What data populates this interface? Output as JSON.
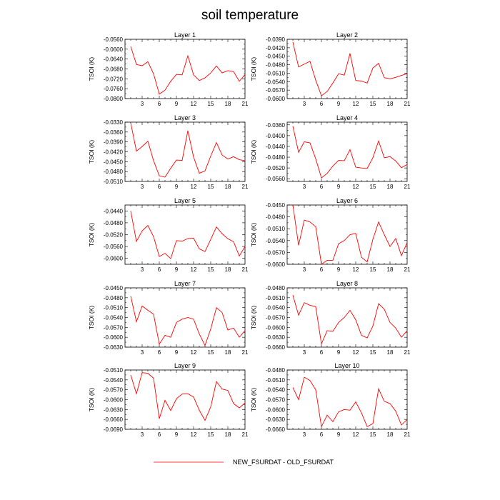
{
  "figure": {
    "title": "soil temperature",
    "legend": {
      "label": "NEW_FSURDAT - OLD_FSURDAT",
      "color": "#ff0000",
      "placement": "bottom-center"
    }
  },
  "chart_data": [
    {
      "type": "line",
      "title": "Layer 1",
      "ylabel": "TSOI  (K)",
      "xlim": [
        0,
        21
      ],
      "xticks": [
        3,
        6,
        9,
        12,
        15,
        18,
        21
      ],
      "ylim": [
        -0.08,
        -0.056
      ],
      "yticks": [
        "-0.0560",
        "-0.0600",
        "-0.0640",
        "-0.0680",
        "-0.0720",
        "-0.0760",
        "-0.0800"
      ],
      "x": [
        1,
        2,
        3,
        4,
        5,
        6,
        7,
        8,
        9,
        10,
        11,
        12,
        13,
        14,
        15,
        16,
        17,
        18,
        19,
        20,
        21
      ],
      "series": [
        {
          "color": "#ff0000",
          "values": [
            -0.0589,
            -0.0662,
            -0.0667,
            -0.0651,
            -0.07,
            -0.0782,
            -0.0766,
            -0.073,
            -0.0702,
            -0.0704,
            -0.0627,
            -0.0704,
            -0.0727,
            -0.0716,
            -0.0696,
            -0.0668,
            -0.0696,
            -0.0687,
            -0.0691,
            -0.073,
            -0.0703
          ]
        }
      ]
    },
    {
      "type": "line",
      "title": "Layer 2",
      "ylabel": "TSOI  (K)",
      "xlim": [
        0,
        21
      ],
      "xticks": [
        3,
        6,
        9,
        12,
        15,
        18,
        21
      ],
      "ylim": [
        -0.06,
        -0.039
      ],
      "yticks": [
        "-0.0390",
        "-0.0420",
        "-0.0450",
        "-0.0480",
        "-0.0510",
        "-0.0540",
        "-0.0570",
        "-0.0600"
      ],
      "x": [
        1,
        2,
        3,
        4,
        5,
        6,
        7,
        8,
        9,
        10,
        11,
        12,
        13,
        14,
        15,
        16,
        17,
        18,
        19,
        20,
        21
      ],
      "series": [
        {
          "color": "#ff0000",
          "values": [
            -0.04,
            -0.0488,
            -0.0478,
            -0.0468,
            -0.0535,
            -0.059,
            -0.0575,
            -0.0545,
            -0.0512,
            -0.0517,
            -0.044,
            -0.0536,
            -0.0538,
            -0.0545,
            -0.0492,
            -0.0475,
            -0.0526,
            -0.053,
            -0.0525,
            -0.0518,
            -0.0512
          ]
        }
      ]
    },
    {
      "type": "line",
      "title": "Layer 3",
      "ylabel": "TSOI  (K)",
      "xlim": [
        0,
        21
      ],
      "xticks": [
        3,
        6,
        9,
        12,
        15,
        18,
        21
      ],
      "ylim": [
        -0.051,
        -0.033
      ],
      "yticks": [
        "-0.0330",
        "-0.0360",
        "-0.0390",
        "-0.0420",
        "-0.0450",
        "-0.0480",
        "-0.0510"
      ],
      "x": [
        1,
        2,
        3,
        4,
        5,
        6,
        7,
        8,
        9,
        10,
        11,
        12,
        13,
        14,
        15,
        16,
        17,
        18,
        19,
        20,
        21
      ],
      "series": [
        {
          "color": "#ff0000",
          "values": [
            -0.0332,
            -0.0418,
            -0.0404,
            -0.0388,
            -0.0447,
            -0.0493,
            -0.0497,
            -0.047,
            -0.0445,
            -0.0446,
            -0.0356,
            -0.0436,
            -0.0485,
            -0.0478,
            -0.0433,
            -0.0392,
            -0.043,
            -0.0442,
            -0.0435,
            -0.0444,
            -0.0447
          ]
        }
      ]
    },
    {
      "type": "line",
      "title": "Layer 4",
      "ylabel": "TSOI  (K)",
      "xlim": [
        0,
        21
      ],
      "xticks": [
        3,
        6,
        9,
        12,
        15,
        18,
        21
      ],
      "ylim": [
        -0.057,
        -0.035
      ],
      "yticks": [
        "-0.0360",
        "-0.0400",
        "-0.0440",
        "-0.0480",
        "-0.0520",
        "-0.0560"
      ],
      "x": [
        1,
        2,
        3,
        4,
        5,
        6,
        7,
        8,
        9,
        10,
        11,
        12,
        13,
        14,
        15,
        16,
        17,
        18,
        19,
        20,
        21
      ],
      "series": [
        {
          "color": "#ff0000",
          "values": [
            -0.0365,
            -0.0462,
            -0.0423,
            -0.0427,
            -0.0486,
            -0.0557,
            -0.054,
            -0.0513,
            -0.0492,
            -0.0493,
            -0.0452,
            -0.0517,
            -0.052,
            -0.0522,
            -0.0482,
            -0.042,
            -0.0482,
            -0.0478,
            -0.0494,
            -0.0519,
            -0.0507
          ]
        }
      ]
    },
    {
      "type": "line",
      "title": "Layer 5",
      "ylabel": "TSOI  (K)",
      "xlim": [
        0,
        21
      ],
      "xticks": [
        3,
        6,
        9,
        12,
        15,
        18,
        21
      ],
      "ylim": [
        -0.062,
        -0.042
      ],
      "yticks": [
        "-0.0440",
        "-0.0480",
        "-0.0520",
        "-0.0560",
        "-0.0600"
      ],
      "x": [
        1,
        2,
        3,
        4,
        5,
        6,
        7,
        8,
        9,
        10,
        11,
        12,
        13,
        14,
        15,
        16,
        17,
        18,
        19,
        20,
        21
      ],
      "series": [
        {
          "color": "#ff0000",
          "values": [
            -0.044,
            -0.0543,
            -0.0507,
            -0.0489,
            -0.0527,
            -0.0594,
            -0.0583,
            -0.0601,
            -0.054,
            -0.0542,
            -0.0533,
            -0.0532,
            -0.0568,
            -0.0577,
            -0.0536,
            -0.0494,
            -0.0517,
            -0.0534,
            -0.0544,
            -0.0592,
            -0.056
          ]
        }
      ]
    },
    {
      "type": "line",
      "title": "Layer 6",
      "ylabel": "TSOI  (K)",
      "xlim": [
        0,
        21
      ],
      "xticks": [
        3,
        6,
        9,
        12,
        15,
        18,
        21
      ],
      "ylim": [
        -0.06,
        -0.045
      ],
      "yticks": [
        "-0.0450",
        "-0.0480",
        "-0.0510",
        "-0.0540",
        "-0.0570",
        "-0.0600"
      ],
      "x": [
        1,
        2,
        3,
        4,
        5,
        6,
        7,
        8,
        9,
        10,
        11,
        12,
        13,
        14,
        15,
        16,
        17,
        18,
        19,
        20,
        21
      ],
      "series": [
        {
          "color": "#ff0000",
          "values": [
            -0.0449,
            -0.0552,
            -0.0488,
            -0.0493,
            -0.0505,
            -0.06,
            -0.059,
            -0.059,
            -0.0548,
            -0.054,
            -0.0525,
            -0.0522,
            -0.0582,
            -0.0594,
            -0.0537,
            -0.0493,
            -0.0525,
            -0.0555,
            -0.0535,
            -0.0578,
            -0.0545
          ]
        }
      ]
    },
    {
      "type": "line",
      "title": "Layer 7",
      "ylabel": "TSOI  (K)",
      "xlim": [
        0,
        21
      ],
      "xticks": [
        3,
        6,
        9,
        12,
        15,
        18,
        21
      ],
      "ylim": [
        -0.063,
        -0.045
      ],
      "yticks": [
        "-0.0450",
        "-0.0480",
        "-0.0510",
        "-0.0540",
        "-0.0570",
        "-0.0600",
        "-0.0630"
      ],
      "x": [
        1,
        2,
        3,
        4,
        5,
        6,
        7,
        8,
        9,
        10,
        11,
        12,
        13,
        14,
        15,
        16,
        17,
        18,
        19,
        20,
        21
      ],
      "series": [
        {
          "color": "#ff0000",
          "values": [
            -0.0475,
            -0.0553,
            -0.0505,
            -0.0518,
            -0.053,
            -0.0621,
            -0.0594,
            -0.06,
            -0.0555,
            -0.0545,
            -0.054,
            -0.0545,
            -0.059,
            -0.0625,
            -0.0575,
            -0.051,
            -0.0525,
            -0.0578,
            -0.0572,
            -0.06,
            -0.058
          ]
        }
      ]
    },
    {
      "type": "line",
      "title": "Layer 8",
      "ylabel": "TSOI  (K)",
      "xlim": [
        0,
        21
      ],
      "xticks": [
        3,
        6,
        9,
        12,
        15,
        18,
        21
      ],
      "ylim": [
        -0.066,
        -0.048
      ],
      "yticks": [
        "-0.0480",
        "-0.0510",
        "-0.0540",
        "-0.0570",
        "-0.0600",
        "-0.0630",
        "-0.0660"
      ],
      "x": [
        1,
        2,
        3,
        4,
        5,
        6,
        7,
        8,
        9,
        10,
        11,
        12,
        13,
        14,
        15,
        16,
        17,
        18,
        19,
        20,
        21
      ],
      "series": [
        {
          "color": "#ff0000",
          "values": [
            -0.0502,
            -0.0563,
            -0.0525,
            -0.0533,
            -0.0537,
            -0.065,
            -0.061,
            -0.0612,
            -0.0585,
            -0.057,
            -0.0548,
            -0.0577,
            -0.0624,
            -0.0632,
            -0.0596,
            -0.0528,
            -0.0545,
            -0.0585,
            -0.0602,
            -0.063,
            -0.061
          ]
        }
      ]
    },
    {
      "type": "line",
      "title": "Layer 9",
      "ylabel": "TSOI  (K)",
      "xlim": [
        0,
        21
      ],
      "xticks": [
        3,
        6,
        9,
        12,
        15,
        18,
        21
      ],
      "ylim": [
        -0.069,
        -0.051
      ],
      "yticks": [
        "-0.0510",
        "-0.0540",
        "-0.0570",
        "-0.0600",
        "-0.0630",
        "-0.0660",
        "-0.0690"
      ],
      "x": [
        1,
        2,
        3,
        4,
        5,
        6,
        7,
        8,
        9,
        10,
        11,
        12,
        13,
        14,
        15,
        16,
        17,
        18,
        19,
        20,
        21
      ],
      "series": [
        {
          "color": "#ff0000",
          "values": [
            -0.0525,
            -0.0582,
            -0.0518,
            -0.052,
            -0.0535,
            -0.0658,
            -0.0602,
            -0.0633,
            -0.0597,
            -0.0583,
            -0.0582,
            -0.0592,
            -0.0632,
            -0.0663,
            -0.0622,
            -0.0545,
            -0.0568,
            -0.0572,
            -0.0612,
            -0.0625,
            -0.061
          ]
        }
      ]
    },
    {
      "type": "line",
      "title": "Layer 10",
      "ylabel": "TSOI  (K)",
      "xlim": [
        0,
        21
      ],
      "xticks": [
        3,
        6,
        9,
        12,
        15,
        18,
        21
      ],
      "ylim": [
        -0.066,
        -0.048
      ],
      "yticks": [
        "-0.0480",
        "-0.0510",
        "-0.0540",
        "-0.0570",
        "-0.0600",
        "-0.0630",
        "-0.0660"
      ],
      "x": [
        1,
        2,
        3,
        4,
        5,
        6,
        7,
        8,
        9,
        10,
        11,
        12,
        13,
        14,
        15,
        16,
        17,
        18,
        19,
        20,
        21
      ],
      "series": [
        {
          "color": "#ff0000",
          "values": [
            -0.0533,
            -0.057,
            -0.0502,
            -0.0512,
            -0.054,
            -0.0652,
            -0.0617,
            -0.0637,
            -0.0607,
            -0.06,
            -0.0602,
            -0.0577,
            -0.061,
            -0.0652,
            -0.0643,
            -0.0537,
            -0.0575,
            -0.0582,
            -0.0605,
            -0.0647,
            -0.063
          ]
        }
      ]
    }
  ]
}
